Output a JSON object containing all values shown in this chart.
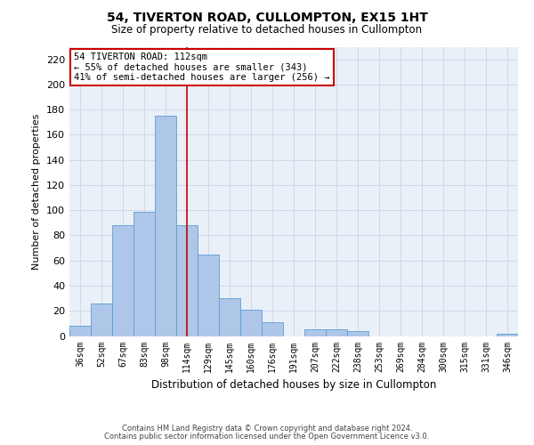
{
  "title": "54, TIVERTON ROAD, CULLOMPTON, EX15 1HT",
  "subtitle": "Size of property relative to detached houses in Cullompton",
  "xlabel": "Distribution of detached houses by size in Cullompton",
  "ylabel": "Number of detached properties",
  "categories": [
    "36sqm",
    "52sqm",
    "67sqm",
    "83sqm",
    "98sqm",
    "114sqm",
    "129sqm",
    "145sqm",
    "160sqm",
    "176sqm",
    "191sqm",
    "207sqm",
    "222sqm",
    "238sqm",
    "253sqm",
    "269sqm",
    "284sqm",
    "300sqm",
    "315sqm",
    "331sqm",
    "346sqm"
  ],
  "values": [
    8,
    26,
    88,
    99,
    175,
    88,
    65,
    30,
    21,
    11,
    0,
    5,
    5,
    4,
    0,
    0,
    0,
    0,
    0,
    0,
    2
  ],
  "bar_color": "#aec6e8",
  "bar_edge_color": "#5a9fd4",
  "vline_x": 5,
  "vline_color": "#cc0000",
  "annotation_line1": "54 TIVERTON ROAD: 112sqm",
  "annotation_line2": "← 55% of detached houses are smaller (343)",
  "annotation_line3": "41% of semi-detached houses are larger (256) →",
  "annotation_box_color": "#ffffff",
  "annotation_box_edge": "#cc0000",
  "ylim": [
    0,
    230
  ],
  "yticks": [
    0,
    20,
    40,
    60,
    80,
    100,
    120,
    140,
    160,
    180,
    200,
    220
  ],
  "grid_color": "#d0d8e8",
  "background_color": "#eaf0f8",
  "footer1": "Contains HM Land Registry data © Crown copyright and database right 2024.",
  "footer2": "Contains public sector information licensed under the Open Government Licence v3.0."
}
